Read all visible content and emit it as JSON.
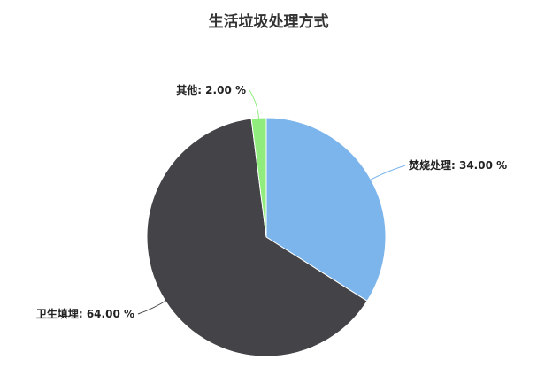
{
  "chart_data": {
    "type": "pie",
    "title": "生活垃圾处理方式",
    "slices": [
      {
        "name": "焚烧处理",
        "value": 34.0,
        "label": "焚烧处理: 34.00 %",
        "color": "#7cb5ec"
      },
      {
        "name": "卫生填埋",
        "value": 64.0,
        "label": "卫生填埋: 64.00 %",
        "color": "#434348"
      },
      {
        "name": "其他",
        "value": 2.0,
        "label": "其他: 2.00 %",
        "color": "#90ed7d"
      }
    ],
    "start_angle": "top, clockwise",
    "legend": "none"
  }
}
